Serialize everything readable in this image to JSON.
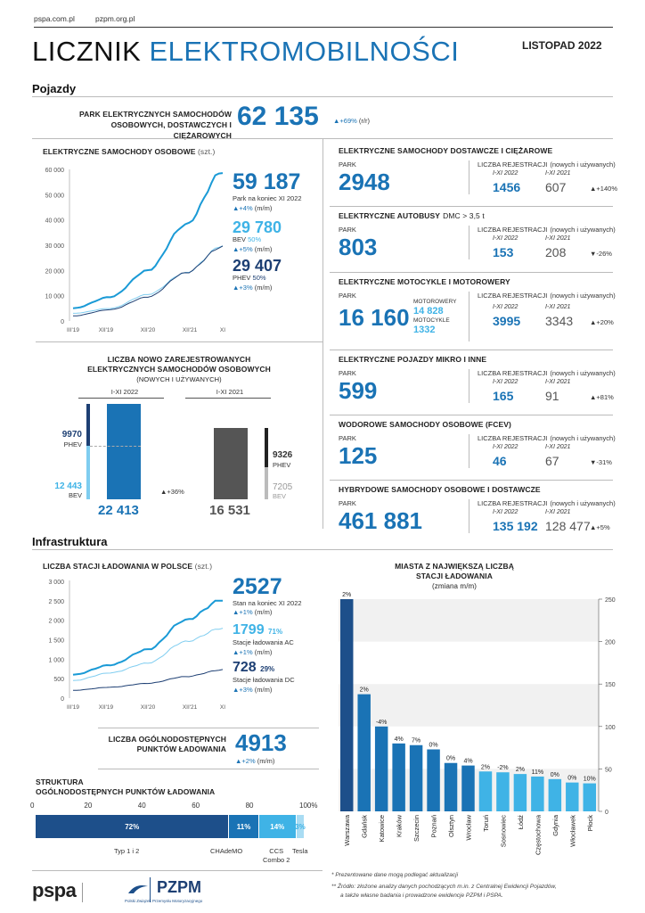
{
  "header": {
    "link1": "pspa.com.pl",
    "link2": "pzpm.org.pl",
    "title_a": "LICZNIK",
    "title_b": "ELEKTROMOBILNOŚCI",
    "date": "LISTOPAD 2022"
  },
  "pojazdy": {
    "section": "Pojazdy",
    "park_label_1": "PARK ELEKTRYCZNYCH SAMOCHODÓW",
    "park_label_2": "OSOBOWYCH, DOSTAWCZYCH I CIĘŻAROWYCH",
    "park_value": "62 135",
    "park_change": "▲+69%",
    "park_change_unit": "(r/r)"
  },
  "cars": {
    "title": "ELEKTRYCZNE SAMOCHODY OSOBOWE",
    "unit": "(szt.)",
    "total": "59 187",
    "total_label": "Park na koniec XI 2022",
    "total_change": "▲+4%",
    "total_change_unit": "(m/m)",
    "bev": "29 780",
    "bev_label": "BEV",
    "bev_pct": "50%",
    "bev_change": "▲+5%",
    "bev_change_unit": "(m/m)",
    "phev": "29 407",
    "phev_label": "PHEV",
    "phev_pct": "50%",
    "phev_change": "▲+3%",
    "phev_change_unit": "(m/m)",
    "yticks": [
      "60 000",
      "50 000",
      "40 000",
      "30 000",
      "20 000",
      "10 000",
      "0"
    ],
    "xticks": [
      "III'19",
      "XII'19",
      "XII'20",
      "XII'21",
      "XI"
    ]
  },
  "registrations": {
    "title_1": "LICZBA NOWO ZAREJESTROWANYCH",
    "title_2": "ELEKTRYCZNYCH SAMOCHODÓW OSOBOWYCH",
    "subtitle": "(NOWYCH I UŻYWANYCH)",
    "p1": "I-XI 2022",
    "p2": "I-XI 2021",
    "phev_2022": "9970",
    "phev_label": "PHEV",
    "bev_2022": "12 443",
    "bev_label": "BEV",
    "total_2022": "22 413",
    "change": "▲+36%",
    "phev_2021": "9326",
    "bev_2021": "7205",
    "total_2021": "16 531"
  },
  "right_blocks": [
    {
      "title": "ELEKTRYCZNE SAMOCHODY DOSTAWCZE I CIĘŻAROWE",
      "title_suffix": "",
      "park_label": "PARK",
      "park": "2948",
      "reg_label": "LICZBA REJESTRACJI",
      "reg_unit": "(nowych i używanych)",
      "p1": "I-XI 2022",
      "p2": "I-XI 2021",
      "v1": "1456",
      "v2": "607",
      "change": "▲+140%"
    },
    {
      "title": "ELEKTRYCZNE AUTOBUSY",
      "title_suffix": "DMC > 3,5 t",
      "park_label": "PARK",
      "park": "803",
      "reg_label": "LICZBA REJESTRACJI",
      "reg_unit": "(nowych i używanych)",
      "p1": "I-XI 2022",
      "p2": "I-XI 2021",
      "v1": "153",
      "v2": "208",
      "change": "▼-26%"
    },
    {
      "title": "ELEKTRYCZNE MOTOCYKLE I MOTOROWERY",
      "title_suffix": "",
      "park_label": "PARK",
      "park": "16 160",
      "reg_label": "LICZBA REJESTRACJI",
      "reg_unit": "(nowych i używanych)",
      "p1": "I-XI 2022",
      "p2": "I-XI 2021",
      "v1": "3995",
      "v2": "3343",
      "change": "▲+20%"
    },
    {
      "title": "ELEKTRYCZNE POJAZDY MIKRO I INNE",
      "title_suffix": "",
      "park_label": "PARK",
      "park": "599",
      "reg_label": "LICZBA REJESTRACJI",
      "reg_unit": "(nowych i używanych)",
      "p1": "I-XI 2022",
      "p2": "I-XI 2021",
      "v1": "165",
      "v2": "91",
      "change": "▲+81%"
    },
    {
      "title": "WODOROWE SAMOCHODY OSOBOWE (FCEV)",
      "title_suffix": "",
      "park_label": "PARK",
      "park": "125",
      "reg_label": "LICZBA REJESTRACJI",
      "reg_unit": "(nowych i używanych)",
      "p1": "I-XI 2022",
      "p2": "I-XI 2021",
      "v1": "46",
      "v2": "67",
      "change": "▼-31%"
    },
    {
      "title": "HYBRYDOWE SAMOCHODY OSOBOWE I DOSTAWCZE",
      "title_suffix": "",
      "park_label": "PARK",
      "park": "461 881",
      "reg_label": "LICZBA REJESTRACJI",
      "reg_unit": "(nowych i używanych)",
      "p1": "I-XI 2022",
      "p2": "I-XI 2021",
      "v1": "135 192",
      "v2": "128 477",
      "change": "▲+5%"
    }
  ],
  "moto": {
    "l1": "MOTOROWERY",
    "v1": "14 828",
    "l2": "MOTOCYKLE",
    "v2": "1332"
  },
  "infra": {
    "section": "Infrastruktura",
    "title": "LICZBA STACJI ŁADOWANIA W POLSCE",
    "unit": "(szt.)",
    "total": "2527",
    "total_label": "Stan na koniec XI 2022",
    "total_change": "▲+1%",
    "total_change_unit": "(m/m)",
    "ac": "1799",
    "ac_pct": "71%",
    "ac_label": "Stacje ładowania AC",
    "ac_change": "▲+1%",
    "ac_change_unit": "(m/m)",
    "dc": "728",
    "dc_pct": "29%",
    "dc_label": "Stacje ładowania DC",
    "dc_change": "▲+3%",
    "dc_change_unit": "(m/m)",
    "yticks": [
      "3 000",
      "2 500",
      "2 000",
      "1 500",
      "1 000",
      "500",
      "0"
    ],
    "xticks": [
      "III'19",
      "XII'19",
      "XII'20",
      "XII'21",
      "XI"
    ],
    "points_label_1": "LICZBA OGÓLNODOSTĘPNYCH",
    "points_label_2": "PUNKTÓW ŁADOWANIA",
    "points": "4913",
    "points_change": "▲+2%",
    "points_change_unit": "(m/m)"
  },
  "structure": {
    "title_1": "STRUKTURA",
    "title_2": "OGÓLNODOSTĘPNYCH PUNKTÓW ŁADOWANIA",
    "axis": [
      "0",
      "20",
      "40",
      "60",
      "80",
      "100%"
    ],
    "segments": [
      {
        "label": "Typ 1 i 2",
        "pct": "72%",
        "value": 72,
        "color": "#1d4f8a"
      },
      {
        "label": "CHAdeMO",
        "pct": "11%",
        "value": 11,
        "color": "#1a73b5"
      },
      {
        "label": "CCS Combo 2",
        "pct": "14%",
        "value": 14,
        "color": "#3fb3e6"
      },
      {
        "label": "Tesla",
        "pct": "3%",
        "value": 3,
        "color": "#a9dcf3"
      }
    ],
    "label_ccs_1": "CCS",
    "label_ccs_2": "Combo 2"
  },
  "cities": {
    "title_1": "MIASTA Z NAJWIĘKSZĄ LICZBĄ",
    "title_2": "STACJI ŁADOWANIA",
    "subtitle": "(zmiana m/m)",
    "yticks": [
      "250",
      "200",
      "150",
      "100",
      "50",
      "0"
    ]
  },
  "chart_data": [
    {
      "type": "line",
      "title": "ELEKTRYCZNE SAMOCHODY OSOBOWE",
      "ylim": [
        0,
        60000
      ],
      "x": [
        "III'19",
        "XII'19",
        "XII'20",
        "XII'21",
        "XI"
      ],
      "series": [
        {
          "name": "Park",
          "values": [
            5000,
            9500,
            20000,
            38000,
            59187
          ]
        },
        {
          "name": "BEV",
          "values": [
            3000,
            5000,
            10500,
            19000,
            29780
          ]
        },
        {
          "name": "PHEV",
          "values": [
            2000,
            4500,
            9500,
            19000,
            29407
          ]
        }
      ]
    },
    {
      "type": "bar",
      "title": "LICZBA NOWO ZAREJESTROWANYCH ELEKTRYCZNYCH SAMOCHODÓW OSOBOWYCH",
      "categories": [
        "I-XI 2022",
        "I-XI 2021"
      ],
      "series": [
        {
          "name": "BEV",
          "values": [
            12443,
            7205
          ]
        },
        {
          "name": "PHEV",
          "values": [
            9970,
            9326
          ]
        }
      ]
    },
    {
      "type": "line",
      "title": "LICZBA STACJI ŁADOWANIA W POLSCE",
      "ylim": [
        0,
        3000
      ],
      "x": [
        "III'19",
        "XII'19",
        "XII'20",
        "XII'21",
        "XI"
      ],
      "series": [
        {
          "name": "Stan na koniec XI 2022",
          "values": [
            600,
            850,
            1250,
            2000,
            2527
          ]
        },
        {
          "name": "Stacje ładowania AC",
          "values": [
            450,
            650,
            900,
            1450,
            1799
          ]
        },
        {
          "name": "Stacje ładowania DC",
          "values": [
            200,
            280,
            380,
            550,
            728
          ]
        }
      ]
    },
    {
      "type": "bar",
      "title": "MIASTA Z NAJWIĘKSZĄ LICZBĄ STACJI ŁADOWANIA",
      "ylim": [
        0,
        250
      ],
      "categories": [
        "Warszawa",
        "Gdańsk",
        "Katowice",
        "Kraków",
        "Szczecin",
        "Poznań",
        "Olsztyn",
        "Wrocław",
        "Toruń",
        "Sosnowiec",
        "Łódź",
        "Częstochowa",
        "Gdynia",
        "Włocławek",
        "Płock"
      ],
      "values": [
        250,
        138,
        100,
        80,
        78,
        73,
        57,
        54,
        47,
        46,
        44,
        41,
        38,
        34,
        33
      ],
      "labels": [
        "2%",
        "2%",
        "-4%",
        "4%",
        "7%",
        "0%",
        "0%",
        "4%",
        "2%",
        "-2%",
        "2%",
        "11%",
        "0%",
        "0%",
        "10%"
      ]
    }
  ],
  "footer": {
    "note1": "* Prezentowane dane mogą podlegać aktualizacji",
    "note2a": "** Źródło: złożone analizy danych pochodzących m.in. z Centralnej Ewidencji Pojazdów,",
    "note2b": "a także własne badania i prowadzone ewidencje PZPM i PSPA.",
    "logo1": "pspa",
    "logo2": "PZPM",
    "logo2_sub": "Polski Związek Przemysłu Motoryzacyjnego"
  }
}
